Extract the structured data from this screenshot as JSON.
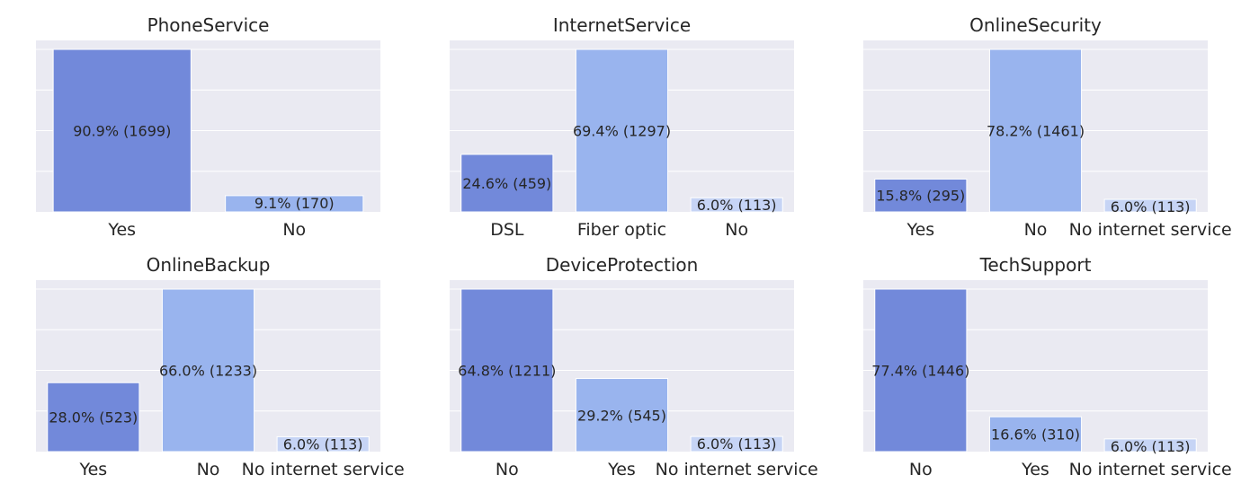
{
  "chart_data": [
    {
      "type": "bar",
      "title": "PhoneService",
      "categories": [
        "Yes",
        "No"
      ],
      "values": [
        1699,
        170
      ],
      "labels": [
        "90.9% (1699)",
        "9.1% (170)"
      ],
      "ylim": [
        0,
        1699
      ]
    },
    {
      "type": "bar",
      "title": "InternetService",
      "categories": [
        "DSL",
        "Fiber optic",
        "No"
      ],
      "values": [
        459,
        1297,
        113
      ],
      "labels": [
        "24.6% (459)",
        "69.4% (1297)",
        "6.0% (113)"
      ],
      "ylim": [
        0,
        1297
      ]
    },
    {
      "type": "bar",
      "title": "OnlineSecurity",
      "categories": [
        "Yes",
        "No",
        "No internet service"
      ],
      "values": [
        295,
        1461,
        113
      ],
      "labels": [
        "15.8% (295)",
        "78.2% (1461)",
        "6.0% (113)"
      ],
      "ylim": [
        0,
        1461
      ]
    },
    {
      "type": "bar",
      "title": "OnlineBackup",
      "categories": [
        "Yes",
        "No",
        "No internet service"
      ],
      "values": [
        523,
        1233,
        113
      ],
      "labels": [
        "28.0% (523)",
        "66.0% (1233)",
        "6.0% (113)"
      ],
      "ylim": [
        0,
        1233
      ]
    },
    {
      "type": "bar",
      "title": "DeviceProtection",
      "categories": [
        "No",
        "Yes",
        "No internet service"
      ],
      "values": [
        1211,
        545,
        113
      ],
      "labels": [
        "64.8% (1211)",
        "29.2% (545)",
        "6.0% (113)"
      ],
      "ylim": [
        0,
        1211
      ]
    },
    {
      "type": "bar",
      "title": "TechSupport",
      "categories": [
        "No",
        "Yes",
        "No internet service"
      ],
      "values": [
        1446,
        310,
        113
      ],
      "labels": [
        "77.4% (1446)",
        "16.6% (310)",
        "6.0% (113)"
      ],
      "ylim": [
        0,
        1446
      ]
    }
  ],
  "style": {
    "plot_background": "#eaeaf2",
    "grid_color": "#ffffff",
    "bar_colors": [
      "#7289da",
      "#99b4ee",
      "#c6d4f5"
    ]
  }
}
